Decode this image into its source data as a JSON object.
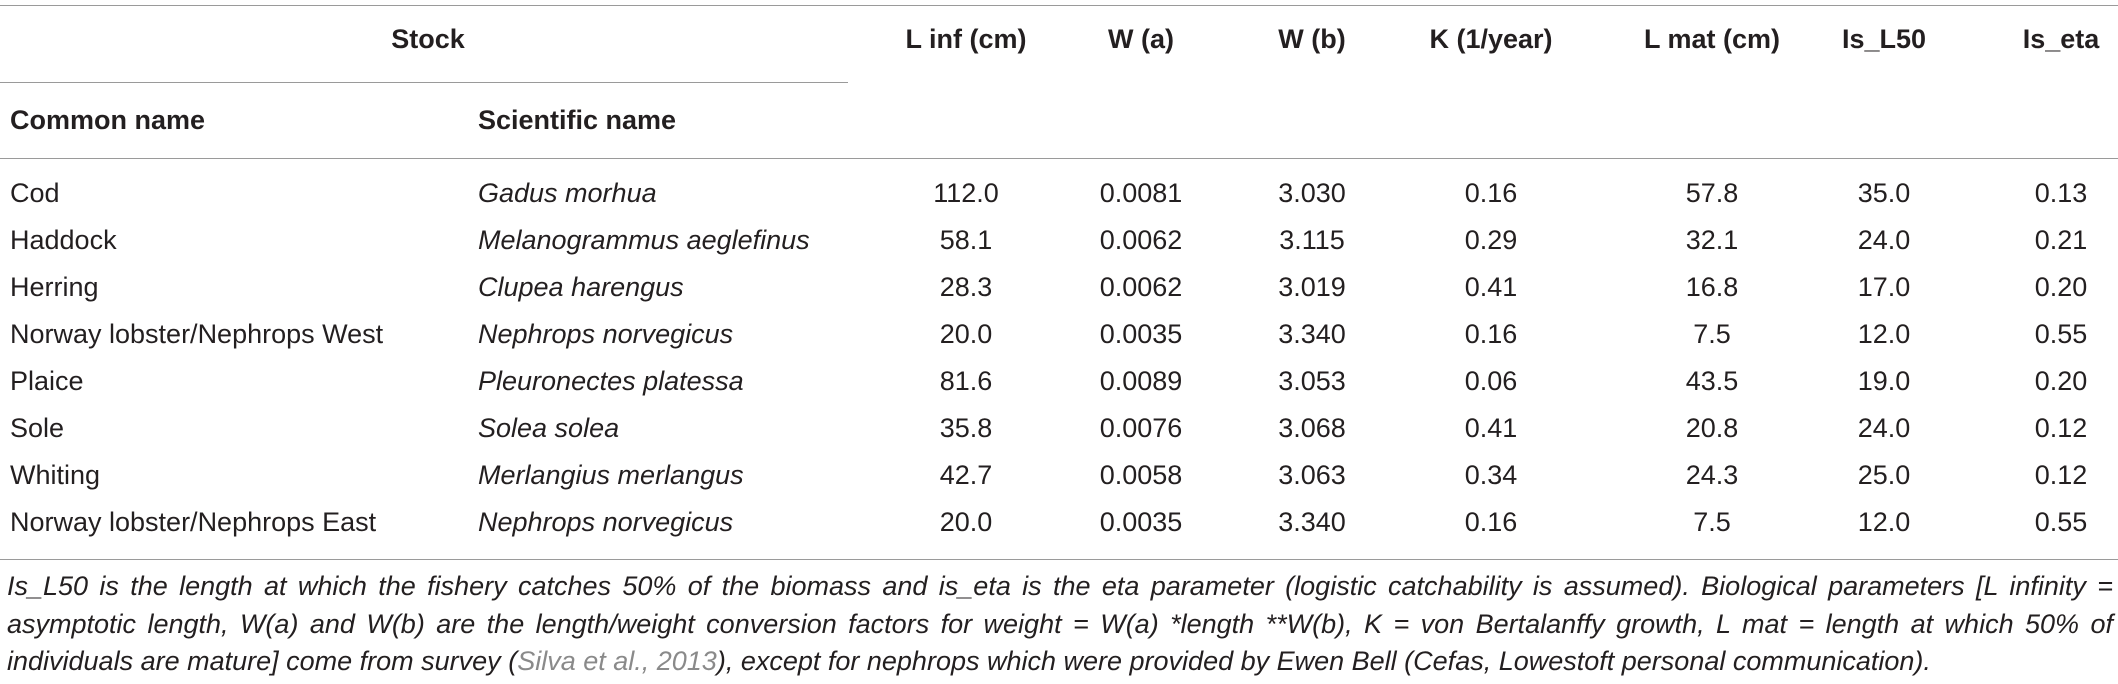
{
  "table": {
    "group_header": "Stock",
    "sub_headers": [
      "Common name",
      "Scientific name"
    ],
    "columns": [
      "L inf (cm)",
      "W (a)",
      "W (b)",
      "K (1/year)",
      "L mat (cm)",
      "Is_L50",
      "Is_eta"
    ],
    "rows": [
      {
        "common": "Cod",
        "scientific": "Gadus morhua",
        "values": [
          "112.0",
          "0.0081",
          "3.030",
          "0.16",
          "57.8",
          "35.0",
          "0.13"
        ]
      },
      {
        "common": "Haddock",
        "scientific": "Melanogrammus aeglefinus",
        "values": [
          "58.1",
          "0.0062",
          "3.115",
          "0.29",
          "32.1",
          "24.0",
          "0.21"
        ]
      },
      {
        "common": "Herring",
        "scientific": "Clupea harengus",
        "values": [
          "28.3",
          "0.0062",
          "3.019",
          "0.41",
          "16.8",
          "17.0",
          "0.20"
        ]
      },
      {
        "common": "Norway lobster/Nephrops West",
        "scientific": "Nephrops norvegicus",
        "values": [
          "20.0",
          "0.0035",
          "3.340",
          "0.16",
          "7.5",
          "12.0",
          "0.55"
        ]
      },
      {
        "common": "Plaice",
        "scientific": "Pleuronectes platessa",
        "values": [
          "81.6",
          "0.0089",
          "3.053",
          "0.06",
          "43.5",
          "19.0",
          "0.20"
        ]
      },
      {
        "common": "Sole",
        "scientific": "Solea solea",
        "values": [
          "35.8",
          "0.0076",
          "3.068",
          "0.41",
          "20.8",
          "24.0",
          "0.12"
        ]
      },
      {
        "common": "Whiting",
        "scientific": "Merlangius merlangus",
        "values": [
          "42.7",
          "0.0058",
          "3.063",
          "0.34",
          "24.3",
          "25.0",
          "0.12"
        ]
      },
      {
        "common": "Norway lobster/Nephrops East",
        "scientific": "Nephrops norvegicus",
        "values": [
          "20.0",
          "0.0035",
          "3.340",
          "0.16",
          "7.5",
          "12.0",
          "0.55"
        ]
      }
    ]
  },
  "footnote": {
    "before": "Is_L50 is the length at which the fishery catches 50% of the biomass and is_eta is the eta parameter (logistic catchability is assumed). Biological parameters [L infinity = asymptotic length, W(a) and W(b) are the length/weight conversion factors for weight = W(a) *length **W(b), K = von Bertalanffy growth, L mat = length at which 50% of individuals are mature] come from survey (",
    "citation": "Silva et al., 2013",
    "after": "), except for nephrops which were provided by Ewen Bell (Cefas, Lowestoft personal communication)."
  },
  "colors": {
    "text": "#231f20",
    "rule": "#9a9a9a",
    "citation": "#8a8a8a"
  }
}
